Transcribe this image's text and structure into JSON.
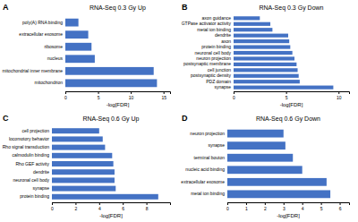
{
  "chart_data": [
    {
      "type": "bar",
      "orientation": "horizontal",
      "title": "RNA-Seq 0.3 Gy Up",
      "categories": [
        "poly(A) RNA binding",
        "extracellular exosome",
        "ribosome",
        "nucleus",
        "mitochondrial inner membrane",
        "mitochondrion"
      ],
      "values": [
        2.0,
        3.5,
        4.0,
        4.5,
        13.5,
        14.0
      ],
      "color": "#4472C4",
      "xlabel": "-log[FDR]",
      "xlim": [
        0,
        16
      ],
      "xticks": [
        0,
        5,
        10,
        15
      ],
      "annotations": [
        "A"
      ]
    },
    {
      "type": "bar",
      "orientation": "horizontal",
      "title": "RNA-Seq 0.3 Gy Down",
      "categories": [
        "axon guidance",
        "GTPase activator activity",
        "metal ion binding",
        "dendrite",
        "axon",
        "protein binding",
        "neuronal cell body",
        "neuron projection",
        "postsynaptic membrane",
        "cell junction",
        "postsynaptic density",
        "PDZ domain",
        "synapse"
      ],
      "values": [
        2.5,
        3.5,
        3.7,
        5.2,
        5.3,
        5.4,
        5.6,
        5.8,
        6.0,
        6.1,
        6.2,
        6.3,
        9.5
      ],
      "color": "#4472C4",
      "xlabel": "-log[FDR]",
      "xlim": [
        0,
        11
      ],
      "xticks": [
        0,
        5,
        10
      ],
      "annotations": [
        "B"
      ]
    },
    {
      "type": "bar",
      "orientation": "horizontal",
      "title": "RNA-Seq 0.6 Gy Up",
      "categories": [
        "cell projection",
        "locomotory behavior",
        "Rho signal transduction",
        "calmodulin binding",
        "Rho GEF activity",
        "dendrite",
        "neuronal cell body",
        "synapse",
        "protein binding"
      ],
      "values": [
        4.0,
        4.3,
        4.5,
        5.1,
        5.2,
        5.3,
        5.3,
        5.4,
        9.0
      ],
      "color": "#4472C4",
      "xlabel": "-log[FDR]",
      "xlim": [
        0,
        10
      ],
      "xticks": [
        0,
        2,
        4,
        6,
        8
      ],
      "annotations": [
        "C"
      ]
    },
    {
      "type": "bar",
      "orientation": "horizontal",
      "title": "RNA-Seq 0.6 Gy Down",
      "categories": [
        "neuron projection",
        "synapse",
        "terminal bouton",
        "nucleic acid binding",
        "extracellular exosome",
        "metal ion binding"
      ],
      "values": [
        3.0,
        3.1,
        3.5,
        4.0,
        5.3,
        5.5
      ],
      "color": "#4472C4",
      "xlabel": "-log[FDR]",
      "xlim": [
        0,
        6.5
      ],
      "xticks": [
        0,
        1,
        2,
        3,
        4,
        5,
        6
      ],
      "annotations": [
        "D"
      ]
    }
  ]
}
